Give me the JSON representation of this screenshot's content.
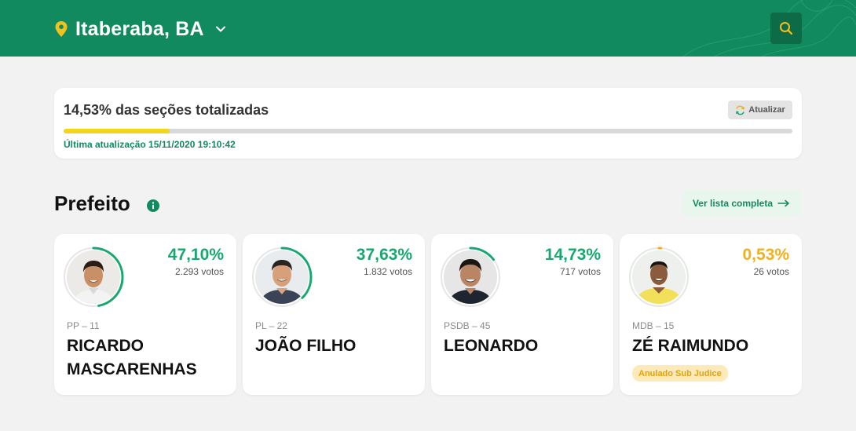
{
  "header": {
    "city": "Itaberaba, BA",
    "pin_icon": "map-pin-icon",
    "chevron_icon": "chevron-down-icon",
    "search_icon": "search-icon",
    "bg_color": "#128a5f"
  },
  "progress": {
    "title": "14,53% das seções totalizadas",
    "percent": 14.53,
    "refresh_label": "Atualizar",
    "refresh_icon": "refresh-icon",
    "last_update": "Última atualização 15/11/2020 19:10:42",
    "fill_color": "#f2d61a"
  },
  "section": {
    "title": "Prefeito",
    "info_icon": "info-icon",
    "see_all_label": "Ver lista completa",
    "see_all_icon": "arrow-right-icon"
  },
  "candidates": [
    {
      "percent_label": "47,10%",
      "percent": 47.1,
      "votes": "2.293 votos",
      "party": "PP – 11",
      "name": "RICARDO MASCARENHAS",
      "color": "#18a86f"
    },
    {
      "percent_label": "37,63%",
      "percent": 37.63,
      "votes": "1.832 votos",
      "party": "PL – 22",
      "name": "JOÃO FILHO",
      "color": "#18a86f"
    },
    {
      "percent_label": "14,73%",
      "percent": 14.73,
      "votes": "717 votos",
      "party": "PSDB – 45",
      "name": "LEONARDO",
      "color": "#18a86f"
    },
    {
      "percent_label": "0,53%",
      "percent": 0.53,
      "votes": "26 votos",
      "party": "MDB – 15",
      "name": "ZÉ RAIMUNDO",
      "badge": "Anulado Sub Judice",
      "color": "#f2b01e"
    }
  ]
}
